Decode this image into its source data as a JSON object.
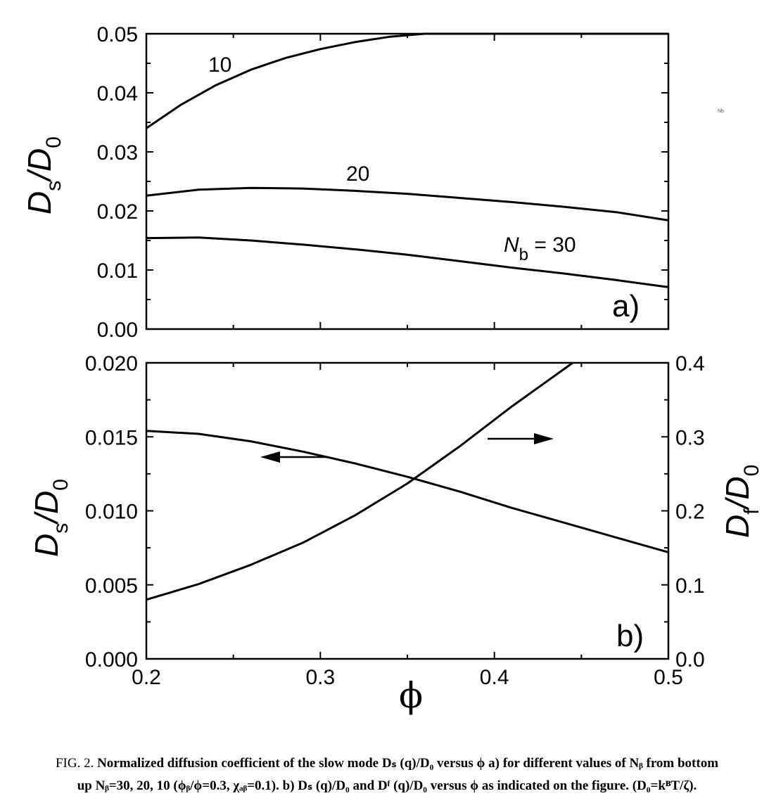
{
  "caption": {
    "fig_label": "FIG. 2.",
    "line1": "Normalized diffusion coefficient of the slow mode Dₛ (q)/D₀ versus ϕ a) for different values of Nᵦ from bottom",
    "line2": "up Nᵦ=30, 20, 10 (ϕᵦ/ϕ=0.3, χₐᵦ=0.1). b) Dₛ (q)/D₀ and Dᶠ (q)/D₀ versus ϕ as indicated on the figure. (D₀=kᴮT/ζ)."
  },
  "stray_label": "Nb",
  "chart_data": [
    {
      "type": "line",
      "panel_label": "a)",
      "xlim": [
        0.2,
        0.5
      ],
      "ylim": [
        0.0,
        0.05
      ],
      "xticks": [
        0.2,
        0.3,
        0.4,
        0.5
      ],
      "yticks": [
        "0.00",
        "0.01",
        "0.02",
        "0.03",
        "0.04",
        "0.05"
      ],
      "ylabel": {
        "main": "D",
        "sub": "s",
        "sep": "/D",
        "sub2": "0"
      },
      "series": [
        {
          "label": "10",
          "x": [
            0.2,
            0.22,
            0.24,
            0.26,
            0.28,
            0.3,
            0.32,
            0.34,
            0.36,
            0.38,
            0.4,
            0.45,
            0.5
          ],
          "y": [
            0.034,
            0.038,
            0.0413,
            0.0439,
            0.0459,
            0.0474,
            0.0486,
            0.0495,
            0.05,
            0.05,
            0.05,
            0.05,
            0.05
          ]
        },
        {
          "label": "20",
          "x": [
            0.2,
            0.23,
            0.26,
            0.29,
            0.32,
            0.35,
            0.38,
            0.41,
            0.44,
            0.47,
            0.5
          ],
          "y": [
            0.0226,
            0.0236,
            0.0239,
            0.0238,
            0.0234,
            0.0229,
            0.0222,
            0.0215,
            0.0207,
            0.0198,
            0.0184
          ]
        },
        {
          "label_main": "N",
          "label_sub": "b",
          "label_rest": " = 30",
          "x": [
            0.2,
            0.23,
            0.26,
            0.29,
            0.32,
            0.35,
            0.38,
            0.41,
            0.44,
            0.47,
            0.5
          ],
          "y": [
            0.0154,
            0.0155,
            0.015,
            0.0143,
            0.0135,
            0.0126,
            0.0115,
            0.0104,
            0.0094,
            0.0083,
            0.0071
          ]
        }
      ]
    },
    {
      "type": "line",
      "panel_label": "b)",
      "xlabel": "ϕ",
      "xlim": [
        0.2,
        0.5
      ],
      "xticks": [
        "0.2",
        "0.3",
        "0.4",
        "0.5"
      ],
      "ylim_left": [
        0.0,
        0.02
      ],
      "yticks_left": [
        "0.000",
        "0.005",
        "0.010",
        "0.015",
        "0.020"
      ],
      "ylim_right": [
        0.0,
        0.4
      ],
      "yticks_right": [
        "0.0",
        "0.1",
        "0.2",
        "0.3",
        "0.4"
      ],
      "ylabel_left": {
        "main": "D",
        "sub": "s",
        "sep": "/D",
        "sub2": "0"
      },
      "ylabel_right": {
        "main": "D",
        "sub": "f",
        "sep": "/D",
        "sub2": "0"
      },
      "series": [
        {
          "axis": "left",
          "x": [
            0.2,
            0.23,
            0.26,
            0.29,
            0.32,
            0.35,
            0.38,
            0.41,
            0.44,
            0.47,
            0.5
          ],
          "y": [
            0.0154,
            0.0152,
            0.0147,
            0.014,
            0.0132,
            0.0123,
            0.0113,
            0.0102,
            0.0092,
            0.0082,
            0.0072
          ]
        },
        {
          "axis": "right",
          "x": [
            0.2,
            0.23,
            0.26,
            0.29,
            0.32,
            0.35,
            0.38,
            0.41,
            0.445
          ],
          "y": [
            0.08,
            0.101,
            0.127,
            0.157,
            0.194,
            0.237,
            0.287,
            0.341,
            0.4
          ]
        }
      ]
    }
  ]
}
